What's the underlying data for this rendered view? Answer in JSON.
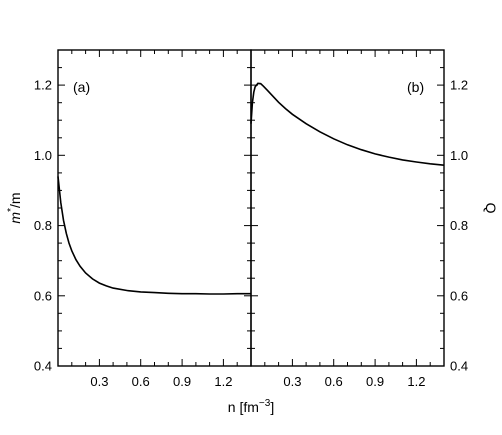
{
  "chart_data": [
    {
      "type": "line",
      "panel_label": "(a)",
      "xlabel_base": "n [fm",
      "xlabel_exp": "−3",
      "xlabel_end": "]",
      "ylabel_base": "m",
      "ylabel_sup": "*",
      "ylabel_end": "/m",
      "xlim": [
        0.0,
        1.4
      ],
      "ylim": [
        0.4,
        1.3
      ],
      "xticks": [
        0.3,
        0.6,
        0.9,
        1.2
      ],
      "xtick_labels": [
        "0.3",
        "0.6",
        "0.9",
        "1.2"
      ],
      "yticks": [
        0.4,
        0.6,
        0.8,
        1.0,
        1.2
      ],
      "ytick_labels": [
        "0.4",
        "0.6",
        "0.8",
        "1.0",
        "1.2"
      ],
      "y_axis_side": "left",
      "series": [
        {
          "x": [
            0.0,
            0.02,
            0.04,
            0.06,
            0.08,
            0.1,
            0.13,
            0.16,
            0.2,
            0.25,
            0.3,
            0.35,
            0.4,
            0.5,
            0.6,
            0.7,
            0.8,
            0.9,
            1.0,
            1.1,
            1.2,
            1.3,
            1.4
          ],
          "y": [
            0.94,
            0.865,
            0.815,
            0.778,
            0.75,
            0.728,
            0.703,
            0.684,
            0.665,
            0.648,
            0.636,
            0.628,
            0.622,
            0.615,
            0.611,
            0.609,
            0.607,
            0.606,
            0.606,
            0.605,
            0.605,
            0.606,
            0.606
          ]
        }
      ]
    },
    {
      "type": "line",
      "panel_label": "(b)",
      "xlabel": "",
      "ylabel": "Q",
      "xlim": [
        0.0,
        1.4
      ],
      "ylim": [
        0.4,
        1.3
      ],
      "xticks": [
        0.3,
        0.6,
        0.9,
        1.2
      ],
      "xtick_labels": [
        "0.3",
        "0.6",
        "0.9",
        "1.2"
      ],
      "yticks": [
        0.4,
        0.6,
        0.8,
        1.0,
        1.2
      ],
      "ytick_labels": [
        "0.4",
        "0.6",
        "0.8",
        "1.0",
        "1.2"
      ],
      "y_axis_side": "right",
      "series": [
        {
          "x": [
            0.0,
            0.01,
            0.02,
            0.03,
            0.05,
            0.07,
            0.09,
            0.12,
            0.15,
            0.2,
            0.25,
            0.3,
            0.4,
            0.5,
            0.6,
            0.7,
            0.8,
            0.9,
            1.0,
            1.1,
            1.2,
            1.3,
            1.4
          ],
          "y": [
            1.09,
            1.15,
            1.18,
            1.195,
            1.205,
            1.204,
            1.197,
            1.185,
            1.172,
            1.151,
            1.133,
            1.117,
            1.09,
            1.067,
            1.047,
            1.03,
            1.016,
            1.004,
            0.995,
            0.987,
            0.981,
            0.976,
            0.972
          ]
        }
      ]
    }
  ]
}
